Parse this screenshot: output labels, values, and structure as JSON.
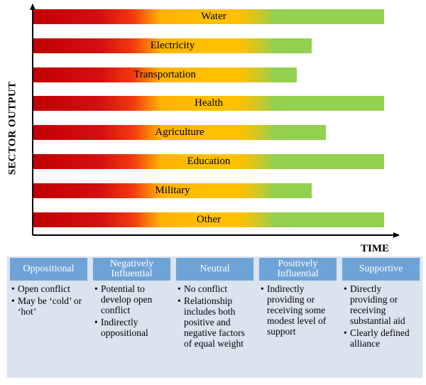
{
  "chart": {
    "y_title": "SECTOR OUTPUT",
    "x_title": "TIME",
    "colors": {
      "start": "#c00000",
      "middle": "#ffc000",
      "end": "#92d050",
      "axis": "#000000"
    },
    "sectors": [
      {
        "name": "Water"
      },
      {
        "name": "Electricity"
      },
      {
        "name": "Transportation"
      },
      {
        "name": "Health"
      },
      {
        "name": "Agriculture"
      },
      {
        "name": "Education"
      },
      {
        "name": "Military"
      },
      {
        "name": "Other"
      }
    ]
  },
  "relationships": [
    {
      "title": "Oppositional",
      "points": [
        "Open conflict",
        "May be ‘cold’ or ‘hot’"
      ]
    },
    {
      "title": "Negatively Influential",
      "points": [
        "Potential to develop open conflict",
        "Indirectly oppositional"
      ]
    },
    {
      "title": "Neutral",
      "points": [
        "No conflict",
        "Relationship includes both positive and negative factors of equal weight"
      ]
    },
    {
      "title": "Positively Influential",
      "points": [
        "Indirectly providing or receiving some modest level of support"
      ]
    },
    {
      "title": "Supportive",
      "points": [
        "Directly providing or receiving substantial aid",
        "Clearly defined alliance"
      ]
    }
  ]
}
